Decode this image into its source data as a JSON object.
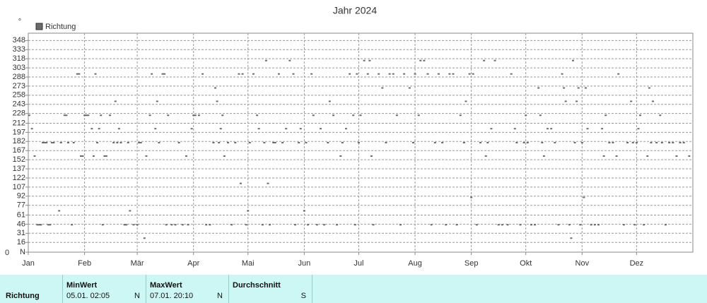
{
  "chart_data": {
    "type": "scatter",
    "title": "Jahr 2024",
    "ylabel": "°",
    "y_origin_label": "0",
    "x": [
      0.5,
      2,
      3.5,
      5,
      6,
      7,
      8,
      9,
      10,
      11,
      12,
      13,
      14,
      17,
      18,
      20,
      21,
      22,
      24,
      25,
      27,
      28,
      29,
      30,
      31,
      32,
      33,
      35,
      36,
      37,
      38,
      39,
      40,
      41,
      42,
      43,
      45,
      47,
      48,
      49,
      50,
      51,
      53,
      54,
      55,
      56,
      58,
      60,
      61,
      62,
      64,
      65,
      67,
      68,
      70,
      71,
      72,
      74,
      75,
      76,
      77,
      79,
      81,
      83,
      85,
      87,
      88,
      90,
      91,
      92,
      94,
      96,
      98,
      100,
      102,
      103,
      104,
      105,
      106,
      107,
      108,
      110,
      112,
      114,
      116,
      117,
      118,
      120,
      121,
      122,
      124,
      126,
      127,
      129,
      130,
      131,
      132,
      133,
      135,
      136,
      138,
      140,
      142,
      144,
      146,
      147,
      149,
      150,
      152,
      153,
      154,
      156,
      157,
      159,
      161,
      163,
      165,
      166,
      168,
      170,
      172,
      173,
      175,
      177,
      179,
      180,
      181,
      182,
      183,
      185,
      187,
      188,
      189,
      190,
      193,
      195,
      197,
      199,
      201,
      203,
      205,
      207,
      210,
      212,
      213,
      215,
      216,
      218,
      220,
      222,
      224,
      226,
      228,
      230,
      232,
      234,
      236,
      238,
      240,
      241,
      243,
      244,
      245,
      247,
      249,
      251,
      252,
      253,
      255,
      257,
      259,
      261,
      264,
      266,
      268,
      269,
      271,
      273,
      274,
      275,
      277,
      279,
      281,
      282,
      283,
      284,
      286,
      288,
      290,
      292,
      294,
      295,
      296,
      298,
      299,
      300,
      301,
      302,
      303,
      304,
      305,
      306,
      307,
      308,
      310,
      312,
      314,
      316,
      317,
      318,
      320,
      322,
      324,
      325,
      328,
      330,
      332,
      333,
      334,
      335,
      336,
      337,
      339,
      341,
      342,
      343,
      344,
      346,
      348,
      349,
      351,
      353,
      355,
      357,
      359,
      361,
      364
    ],
    "series": [
      {
        "name": "Richtung",
        "color": "#6b6b6b",
        "values": [
          225,
          203,
          158,
          45,
          45,
          45,
          180,
          180,
          180,
          45,
          45,
          180,
          180,
          68,
          180,
          225,
          225,
          180,
          45,
          180,
          293,
          293,
          158,
          158,
          225,
          225,
          225,
          203,
          158,
          293,
          180,
          203,
          225,
          45,
          158,
          158,
          225,
          180,
          248,
          180,
          203,
          180,
          45,
          45,
          180,
          68,
          45,
          45,
          180,
          180,
          23,
          158,
          225,
          293,
          203,
          248,
          180,
          293,
          293,
          45,
          225,
          45,
          45,
          180,
          45,
          158,
          45,
          203,
          225,
          225,
          225,
          293,
          45,
          45,
          180,
          270,
          248,
          180,
          203,
          225,
          158,
          180,
          45,
          180,
          293,
          113,
          293,
          45,
          68,
          180,
          293,
          225,
          203,
          45,
          180,
          315,
          113,
          45,
          180,
          180,
          293,
          180,
          203,
          315,
          293,
          45,
          180,
          203,
          68,
          180,
          45,
          293,
          225,
          45,
          203,
          45,
          180,
          248,
          225,
          45,
          158,
          180,
          203,
          293,
          225,
          45,
          293,
          180,
          225,
          315,
          293,
          315,
          158,
          45,
          293,
          270,
          180,
          293,
          293,
          225,
          45,
          293,
          270,
          180,
          293,
          225,
          315,
          315,
          293,
          45,
          180,
          293,
          180,
          45,
          293,
          293,
          45,
          225,
          180,
          248,
          293,
          90,
          293,
          45,
          180,
          315,
          158,
          180,
          203,
          315,
          45,
          45,
          45,
          293,
          203,
          180,
          45,
          180,
          225,
          180,
          45,
          45,
          270,
          225,
          180,
          158,
          203,
          203,
          180,
          45,
          293,
          270,
          248,
          45,
          23,
          315,
          180,
          248,
          270,
          45,
          180,
          90,
          270,
          203,
          45,
          45,
          45,
          203,
          158,
          225,
          180,
          180,
          158,
          293,
          45,
          180,
          248,
          180,
          45,
          180,
          203,
          225,
          45,
          158,
          270,
          180,
          248,
          180,
          225,
          180,
          45,
          180,
          180,
          158,
          180,
          180,
          158
        ]
      }
    ],
    "xlim": [
      0,
      366
    ],
    "xticks": [
      {
        "value": 0,
        "label": "Jan"
      },
      {
        "value": 31,
        "label": "Feb"
      },
      {
        "value": 60,
        "label": "Mär"
      },
      {
        "value": 91,
        "label": "Apr"
      },
      {
        "value": 121,
        "label": "Mai"
      },
      {
        "value": 152,
        "label": "Jun"
      },
      {
        "value": 182,
        "label": "Jul"
      },
      {
        "value": 213,
        "label": "Aug"
      },
      {
        "value": 244,
        "label": "Sep"
      },
      {
        "value": 274,
        "label": "Okt"
      },
      {
        "value": 305,
        "label": "Nov"
      },
      {
        "value": 335,
        "label": "Dez"
      }
    ],
    "ylim": [
      0,
      360
    ],
    "yticks": [
      {
        "value": 0,
        "label": "N"
      },
      16,
      31,
      46,
      61,
      77,
      92,
      107,
      122,
      137,
      152,
      167,
      182,
      197,
      212,
      228,
      243,
      258,
      273,
      288,
      303,
      318,
      333,
      348
    ],
    "grid": true
  },
  "summary": {
    "row_label": "Richtung",
    "columns": [
      {
        "header": "MinWert",
        "time": "05.01.  02:05",
        "direction": "N"
      },
      {
        "header": "MaxWert",
        "time": "07.01.  20:10",
        "direction": "N"
      },
      {
        "header": "Durchschnitt",
        "direction": "S"
      }
    ]
  }
}
